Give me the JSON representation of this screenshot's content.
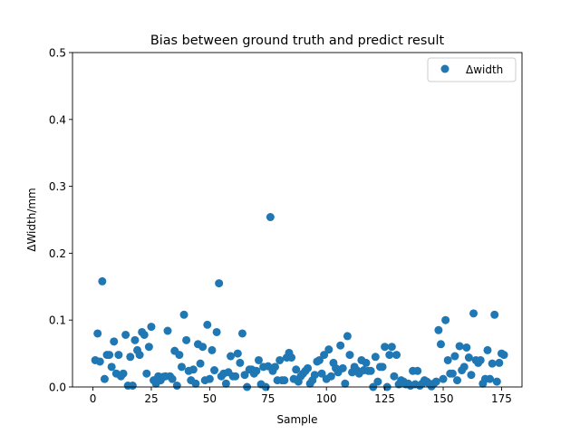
{
  "chart_data": {
    "type": "scatter",
    "title": "Bias between ground truth and predict result",
    "xlabel": "Sample",
    "ylabel": "ΔWidth/mm",
    "xlim": [
      -8.75,
      183.75
    ],
    "ylim": [
      0,
      0.5
    ],
    "xticks": [
      0,
      25,
      50,
      75,
      100,
      125,
      150,
      175
    ],
    "yticks": [
      0.0,
      0.1,
      0.2,
      0.3,
      0.4,
      0.5
    ],
    "grid": false,
    "legend_position": "top-right",
    "marker_color": "#1f77b4",
    "series": [
      {
        "name": "Δwidth",
        "x": [
          1,
          2,
          3,
          4,
          5,
          6,
          7,
          8,
          9,
          10,
          11,
          12,
          13,
          14,
          15,
          16,
          17,
          18,
          19,
          20,
          21,
          22,
          23,
          24,
          25,
          26,
          27,
          28,
          29,
          30,
          31,
          32,
          33,
          34,
          35,
          36,
          37,
          38,
          39,
          40,
          41,
          42,
          43,
          44,
          45,
          46,
          47,
          48,
          49,
          50,
          51,
          52,
          53,
          54,
          55,
          56,
          57,
          58,
          59,
          60,
          61,
          62,
          63,
          64,
          65,
          66,
          67,
          68,
          69,
          70,
          71,
          72,
          73,
          74,
          75,
          76,
          77,
          78,
          79,
          80,
          81,
          82,
          83,
          84,
          85,
          86,
          87,
          88,
          89,
          90,
          91,
          92,
          93,
          94,
          95,
          96,
          97,
          98,
          99,
          100,
          101,
          102,
          103,
          104,
          105,
          106,
          107,
          108,
          109,
          110,
          111,
          112,
          113,
          114,
          115,
          116,
          117,
          118,
          119,
          120,
          121,
          122,
          123,
          124,
          125,
          126,
          127,
          128,
          129,
          130,
          131,
          132,
          133,
          134,
          135,
          136,
          137,
          138,
          139,
          140,
          141,
          142,
          143,
          144,
          145,
          146,
          147,
          148,
          149,
          150,
          151,
          152,
          153,
          154,
          155,
          156,
          157,
          158,
          159,
          160,
          161,
          162,
          163,
          164,
          165,
          166,
          167,
          168,
          169,
          170,
          171,
          172,
          173,
          174,
          175,
          176
        ],
        "y": [
          0.04,
          0.08,
          0.038,
          0.158,
          0.012,
          0.048,
          0.048,
          0.03,
          0.068,
          0.02,
          0.048,
          0.016,
          0.02,
          0.078,
          0.002,
          0.045,
          0.002,
          0.07,
          0.055,
          0.048,
          0.082,
          0.078,
          0.02,
          0.06,
          0.09,
          0.01,
          0.005,
          0.016,
          0.01,
          0.015,
          0.016,
          0.084,
          0.016,
          0.012,
          0.054,
          0.002,
          0.048,
          0.03,
          0.108,
          0.07,
          0.024,
          0.01,
          0.026,
          0.005,
          0.064,
          0.035,
          0.06,
          0.01,
          0.093,
          0.012,
          0.055,
          0.025,
          0.082,
          0.155,
          0.016,
          0.02,
          0.005,
          0.022,
          0.046,
          0.016,
          0.016,
          0.05,
          0.036,
          0.08,
          0.018,
          0.0,
          0.026,
          0.026,
          0.02,
          0.024,
          0.04,
          0.004,
          0.03,
          0.0,
          0.031,
          0.254,
          0.024,
          0.03,
          0.01,
          0.04,
          0.01,
          0.01,
          0.044,
          0.051,
          0.044,
          0.012,
          0.026,
          0.008,
          0.016,
          0.02,
          0.024,
          0.028,
          0.005,
          0.01,
          0.018,
          0.038,
          0.04,
          0.02,
          0.048,
          0.012,
          0.056,
          0.016,
          0.036,
          0.028,
          0.022,
          0.062,
          0.028,
          0.005,
          0.076,
          0.048,
          0.022,
          0.03,
          0.025,
          0.02,
          0.04,
          0.025,
          0.036,
          0.024,
          0.024,
          0.0,
          0.045,
          0.008,
          0.03,
          0.03,
          0.06,
          0.0,
          0.048,
          0.06,
          0.016,
          0.048,
          0.004,
          0.01,
          0.008,
          0.004,
          0.005,
          0.002,
          0.024,
          0.004,
          0.024,
          0.002,
          0.005,
          0.01,
          0.008,
          0.005,
          0.001,
          0.005,
          0.008,
          0.085,
          0.064,
          0.012,
          0.1,
          0.04,
          0.02,
          0.02,
          0.046,
          0.01,
          0.061,
          0.025,
          0.03,
          0.059,
          0.044,
          0.018,
          0.11,
          0.04,
          0.036,
          0.04,
          0.005,
          0.012,
          0.055,
          0.012,
          0.035,
          0.108,
          0.008,
          0.036,
          0.05,
          0.048
        ]
      }
    ]
  }
}
